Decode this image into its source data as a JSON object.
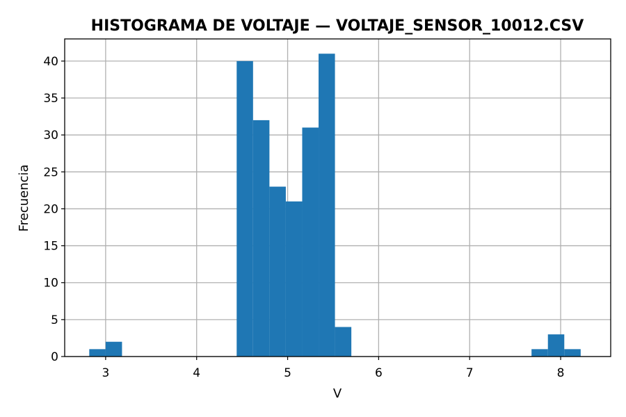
{
  "chart_data": {
    "type": "bar",
    "subtype": "histogram",
    "title": "HISTOGRAMA DE VOLTAJE — VOLTAJE_SENSOR_10012.CSV",
    "xlabel": "V",
    "ylabel": "Frecuencia",
    "xlim": [
      2.55,
      8.55
    ],
    "ylim": [
      0,
      43
    ],
    "xticks": [
      3,
      4,
      5,
      6,
      7,
      8
    ],
    "yticks": [
      0,
      5,
      10,
      15,
      20,
      25,
      30,
      35,
      40
    ],
    "grid": true,
    "bar_color": "#1f77b4",
    "bins": [
      {
        "x0": 2.82,
        "x1": 3.0,
        "count": 1
      },
      {
        "x0": 3.0,
        "x1": 3.18,
        "count": 2
      },
      {
        "x0": 4.44,
        "x1": 4.62,
        "count": 40
      },
      {
        "x0": 4.62,
        "x1": 4.8,
        "count": 32
      },
      {
        "x0": 4.8,
        "x1": 4.98,
        "count": 23
      },
      {
        "x0": 4.98,
        "x1": 5.16,
        "count": 21
      },
      {
        "x0": 5.16,
        "x1": 5.34,
        "count": 31
      },
      {
        "x0": 5.34,
        "x1": 5.52,
        "count": 41
      },
      {
        "x0": 5.52,
        "x1": 5.7,
        "count": 4
      },
      {
        "x0": 7.68,
        "x1": 7.86,
        "count": 1
      },
      {
        "x0": 7.86,
        "x1": 8.04,
        "count": 3
      },
      {
        "x0": 8.04,
        "x1": 8.22,
        "count": 1
      }
    ]
  }
}
